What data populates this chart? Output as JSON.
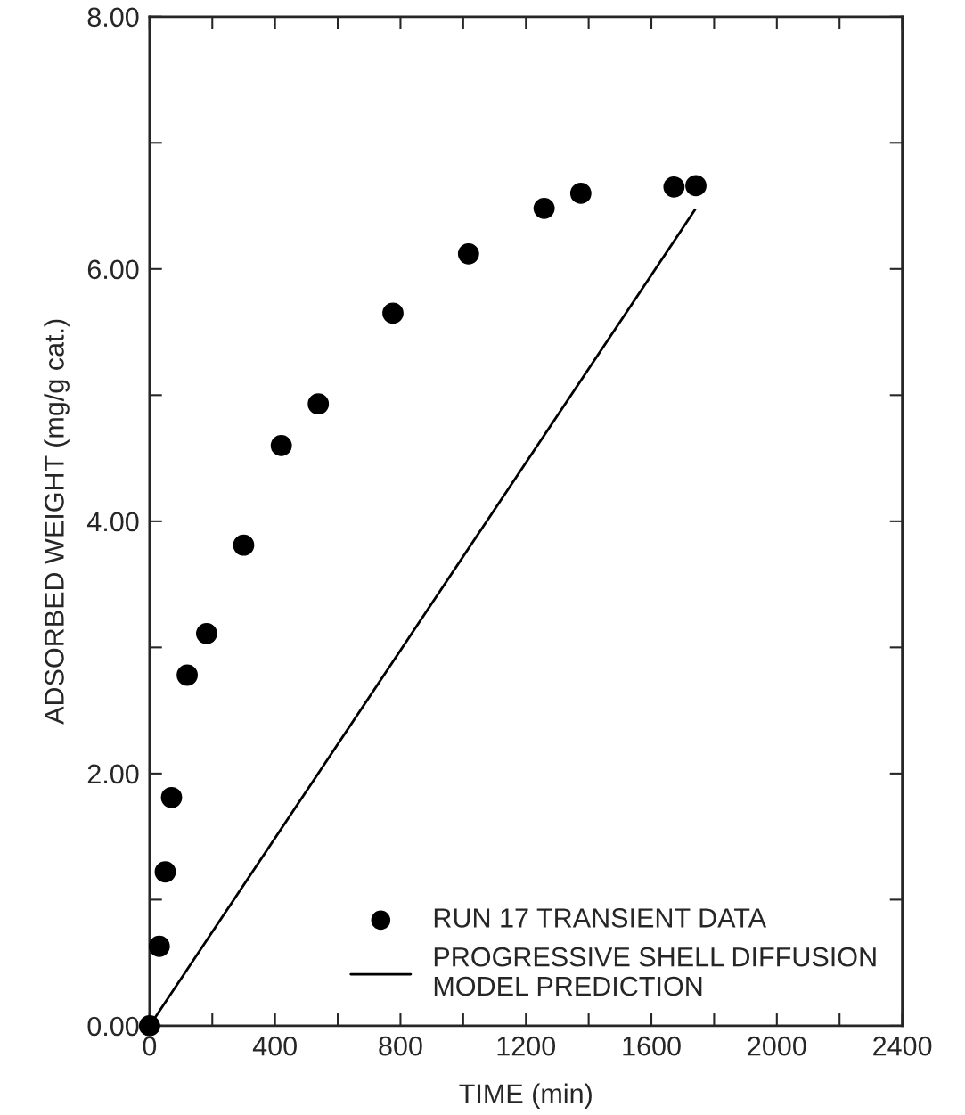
{
  "chart_data": {
    "type": "scatter",
    "xlabel": "TIME (min)",
    "ylabel": "ADSORBED WEIGHT (mg/g cat.)",
    "xlim": [
      0,
      2400
    ],
    "ylim": [
      0,
      8
    ],
    "xticks": [
      0,
      {
        "value": 200,
        "label": null
      },
      400,
      {
        "value": 600,
        "label": null
      },
      800,
      {
        "value": 1000,
        "label": null
      },
      1200,
      {
        "value": 1400,
        "label": null
      },
      1600,
      {
        "value": 1800,
        "label": null
      },
      2000,
      {
        "value": 2200,
        "label": null
      },
      2400
    ],
    "yticks": [
      {
        "value": 0,
        "label": "0.00"
      },
      {
        "value": 1,
        "label": null
      },
      {
        "value": 2,
        "label": "2.00"
      },
      {
        "value": 3,
        "label": null
      },
      {
        "value": 4,
        "label": "4.00"
      },
      {
        "value": 5,
        "label": null
      },
      {
        "value": 6,
        "label": "6.00"
      },
      {
        "value": 7,
        "label": null
      },
      {
        "value": 8,
        "label": "8.00"
      }
    ],
    "grid": false,
    "legend": "bottom right",
    "series": [
      {
        "name": "RUN 17 TRANSIENT DATA",
        "marker": "circle",
        "color": "#000000",
        "x": [
          0,
          31,
          50,
          70,
          120,
          182,
          300,
          420,
          538,
          776,
          1017,
          1258,
          1375,
          1672,
          1742
        ],
        "values": [
          0,
          0.63,
          1.22,
          1.81,
          2.78,
          3.11,
          3.81,
          4.6,
          4.93,
          5.65,
          6.12,
          6.48,
          6.6,
          6.65,
          6.66
        ]
      },
      {
        "name": "PROGRESSIVE SHELL DIFFUSION\nMODEL PREDICTION",
        "type": "line",
        "line_style": "solid",
        "color": "#000000",
        "x": [
          0,
          1739
        ],
        "values": [
          0,
          6.47
        ]
      }
    ]
  }
}
